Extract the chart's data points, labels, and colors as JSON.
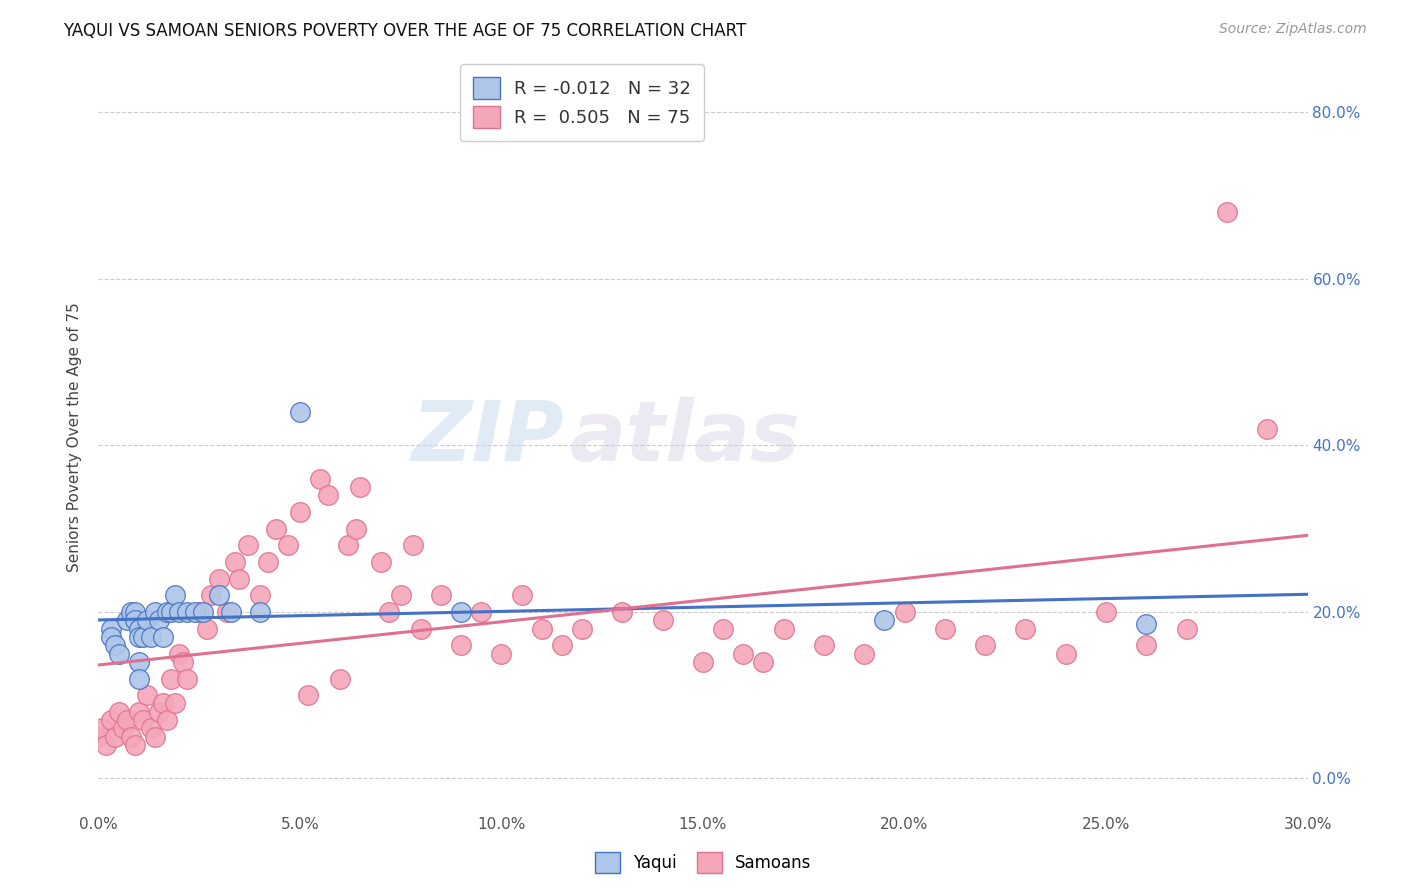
{
  "title": "YAQUI VS SAMOAN SENIORS POVERTY OVER THE AGE OF 75 CORRELATION CHART",
  "source": "Source: ZipAtlas.com",
  "xlim": [
    0.0,
    0.3
  ],
  "ylim": [
    -0.04,
    0.86
  ],
  "yaqui_color": "#aec6e8",
  "samoan_color": "#f4a7b9",
  "yaqui_line_color": "#4472c4",
  "samoan_line_color": "#e07090",
  "legend_R_yaqui": "R = -0.012",
  "legend_N_yaqui": "N = 32",
  "legend_R_samoan": "R =  0.505",
  "legend_N_samoan": "N = 75",
  "watermark_zip": "ZIP",
  "watermark_atlas": "atlas",
  "yaqui_x": [
    0.003,
    0.003,
    0.004,
    0.005,
    0.007,
    0.008,
    0.009,
    0.009,
    0.01,
    0.01,
    0.01,
    0.01,
    0.011,
    0.012,
    0.013,
    0.014,
    0.015,
    0.016,
    0.017,
    0.018,
    0.019,
    0.02,
    0.022,
    0.024,
    0.026,
    0.03,
    0.033,
    0.04,
    0.05,
    0.09,
    0.195,
    0.26
  ],
  "yaqui_y": [
    0.18,
    0.17,
    0.16,
    0.15,
    0.19,
    0.2,
    0.2,
    0.19,
    0.18,
    0.17,
    0.14,
    0.12,
    0.17,
    0.19,
    0.17,
    0.2,
    0.19,
    0.17,
    0.2,
    0.2,
    0.22,
    0.2,
    0.2,
    0.2,
    0.2,
    0.22,
    0.2,
    0.2,
    0.44,
    0.2,
    0.19,
    0.185
  ],
  "samoan_x": [
    0.0,
    0.001,
    0.002,
    0.003,
    0.004,
    0.005,
    0.006,
    0.007,
    0.008,
    0.009,
    0.01,
    0.011,
    0.012,
    0.013,
    0.014,
    0.015,
    0.016,
    0.017,
    0.018,
    0.019,
    0.02,
    0.021,
    0.022,
    0.025,
    0.027,
    0.028,
    0.03,
    0.032,
    0.034,
    0.035,
    0.037,
    0.04,
    0.042,
    0.044,
    0.047,
    0.05,
    0.052,
    0.055,
    0.057,
    0.06,
    0.062,
    0.064,
    0.065,
    0.07,
    0.072,
    0.075,
    0.078,
    0.08,
    0.085,
    0.09,
    0.095,
    0.1,
    0.105,
    0.11,
    0.115,
    0.12,
    0.13,
    0.14,
    0.15,
    0.155,
    0.16,
    0.165,
    0.17,
    0.18,
    0.19,
    0.2,
    0.21,
    0.22,
    0.23,
    0.24,
    0.25,
    0.26,
    0.27,
    0.28,
    0.29
  ],
  "samoan_y": [
    0.05,
    0.06,
    0.04,
    0.07,
    0.05,
    0.08,
    0.06,
    0.07,
    0.05,
    0.04,
    0.08,
    0.07,
    0.1,
    0.06,
    0.05,
    0.08,
    0.09,
    0.07,
    0.12,
    0.09,
    0.15,
    0.14,
    0.12,
    0.2,
    0.18,
    0.22,
    0.24,
    0.2,
    0.26,
    0.24,
    0.28,
    0.22,
    0.26,
    0.3,
    0.28,
    0.32,
    0.1,
    0.36,
    0.34,
    0.12,
    0.28,
    0.3,
    0.35,
    0.26,
    0.2,
    0.22,
    0.28,
    0.18,
    0.22,
    0.16,
    0.2,
    0.15,
    0.22,
    0.18,
    0.16,
    0.18,
    0.2,
    0.19,
    0.14,
    0.18,
    0.15,
    0.14,
    0.18,
    0.16,
    0.15,
    0.2,
    0.18,
    0.16,
    0.18,
    0.15,
    0.2,
    0.16,
    0.18,
    0.68,
    0.42
  ],
  "y_tick_vals": [
    0.0,
    0.2,
    0.4,
    0.6,
    0.8
  ],
  "x_tick_vals": [
    0.0,
    0.05,
    0.1,
    0.15,
    0.2,
    0.25,
    0.3
  ]
}
